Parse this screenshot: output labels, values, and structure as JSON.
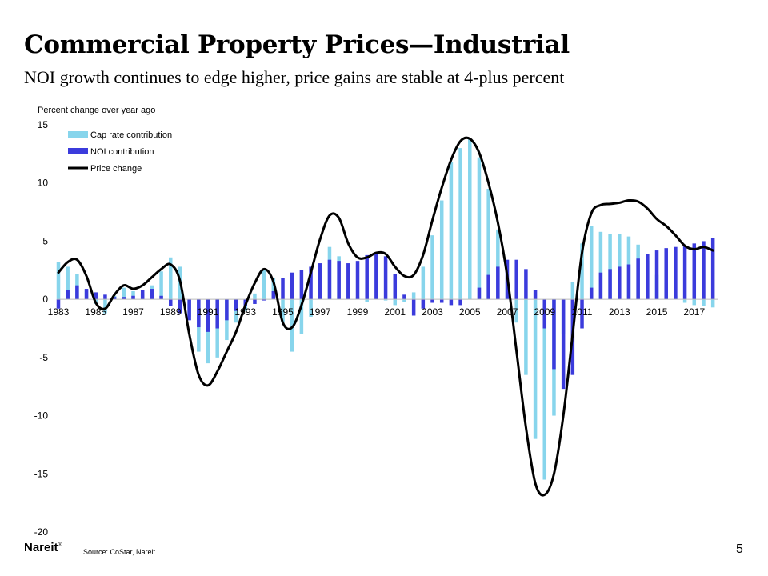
{
  "slide": {
    "title": "Commercial Property Prices—Industrial",
    "subtitle": "NOI growth continues to edge higher, price gains are stable at 4-plus percent",
    "source": "Source:  CoStar, Nareit",
    "logo": "Nareit",
    "logo_mark": "®",
    "page_number": "5"
  },
  "chart_data": {
    "type": "bar",
    "stacked": true,
    "ylabel": "Percent change over year ago",
    "ylim": [
      -20,
      15
    ],
    "yticks": [
      15,
      10,
      5,
      0,
      -5,
      -10,
      -15,
      -20
    ],
    "xlim": [
      1983,
      2018.25
    ],
    "xticks": [
      1983,
      1985,
      1987,
      1989,
      1991,
      1993,
      1995,
      1997,
      1999,
      2001,
      2003,
      2005,
      2007,
      2009,
      2011,
      2013,
      2015,
      2017
    ],
    "legend_position": "top-left",
    "colors": {
      "cap_rate": "#87d5ec",
      "noi": "#3b3bdc",
      "price": "#000000"
    },
    "series": [
      {
        "name": "Cap rate contribution",
        "kind": "bar",
        "points": [
          [
            1983,
            3.2
          ],
          [
            1983.5,
            2.8
          ],
          [
            1984,
            2.2
          ],
          [
            1984.5,
            0.8
          ],
          [
            1985,
            -0.4
          ],
          [
            1985.5,
            -1.2
          ],
          [
            1986,
            0.3
          ],
          [
            1986.5,
            1.0
          ],
          [
            1987,
            0.7
          ],
          [
            1987.5,
            0.5
          ],
          [
            1988,
            1.2
          ],
          [
            1988.5,
            2.4
          ],
          [
            1989,
            3.6
          ],
          [
            1989.5,
            2.8
          ],
          [
            1990,
            -1.5
          ],
          [
            1990.5,
            -4.5
          ],
          [
            1991,
            -5.5
          ],
          [
            1991.5,
            -5.0
          ],
          [
            1992,
            -3.5
          ],
          [
            1992.5,
            -2.0
          ],
          [
            1993,
            -1.0
          ],
          [
            1993.5,
            0.5
          ],
          [
            1994,
            2.6
          ],
          [
            1994.5,
            1.8
          ],
          [
            1995,
            -2.0
          ],
          [
            1995.5,
            -4.5
          ],
          [
            1996,
            -3.0
          ],
          [
            1996.5,
            -1.5
          ],
          [
            1997,
            2.5
          ],
          [
            1997.5,
            4.5
          ],
          [
            1998,
            3.7
          ],
          [
            1998.5,
            0.8
          ],
          [
            1999,
            0.2
          ],
          [
            1999.5,
            -0.2
          ],
          [
            2000,
            0.0
          ],
          [
            2000.5,
            -0.1
          ],
          [
            2001,
            -0.5
          ],
          [
            2001.5,
            -0.2
          ],
          [
            2002,
            0.6
          ],
          [
            2002.5,
            2.8
          ],
          [
            2003,
            5.5
          ],
          [
            2003.5,
            8.5
          ],
          [
            2004,
            11.8
          ],
          [
            2004.5,
            13.0
          ],
          [
            2005,
            13.8
          ],
          [
            2005.5,
            12.2
          ],
          [
            2006,
            9.5
          ],
          [
            2006.5,
            6.0
          ],
          [
            2007,
            1.5
          ],
          [
            2007.5,
            -2.0
          ],
          [
            2008,
            -6.5
          ],
          [
            2008.5,
            -12.0
          ],
          [
            2009,
            -15.5
          ],
          [
            2009.5,
            -10.0
          ],
          [
            2010,
            -3.0
          ],
          [
            2010.5,
            1.5
          ],
          [
            2011,
            4.8
          ],
          [
            2011.5,
            6.3
          ],
          [
            2012,
            5.8
          ],
          [
            2012.5,
            5.6
          ],
          [
            2013,
            5.6
          ],
          [
            2013.5,
            5.4
          ],
          [
            2014,
            4.7
          ],
          [
            2014.5,
            3.3
          ],
          [
            2015,
            2.1
          ],
          [
            2015.5,
            1.4
          ],
          [
            2016,
            0.3
          ],
          [
            2016.5,
            -0.3
          ],
          [
            2017,
            -0.5
          ],
          [
            2017.5,
            -0.6
          ],
          [
            2018,
            -0.7
          ]
        ]
      },
      {
        "name": "NOI contribution",
        "kind": "bar",
        "points": [
          [
            1983,
            -0.8
          ],
          [
            1983.5,
            0.8
          ],
          [
            1984,
            1.2
          ],
          [
            1984.5,
            0.9
          ],
          [
            1985,
            0.6
          ],
          [
            1985.5,
            0.4
          ],
          [
            1986,
            0.2
          ],
          [
            1986.5,
            0.2
          ],
          [
            1987,
            0.3
          ],
          [
            1987.5,
            0.8
          ],
          [
            1988,
            0.9
          ],
          [
            1988.5,
            0.3
          ],
          [
            1989,
            -0.6
          ],
          [
            1989.5,
            -1.2
          ],
          [
            1990,
            -1.8
          ],
          [
            1990.5,
            -2.4
          ],
          [
            1991,
            -2.8
          ],
          [
            1991.5,
            -2.5
          ],
          [
            1992,
            -1.8
          ],
          [
            1992.5,
            -1.0
          ],
          [
            1993,
            -0.6
          ],
          [
            1993.5,
            -0.4
          ],
          [
            1994,
            -0.1
          ],
          [
            1994.5,
            0.7
          ],
          [
            1995,
            1.8
          ],
          [
            1995.5,
            2.3
          ],
          [
            1996,
            2.5
          ],
          [
            1996.5,
            2.8
          ],
          [
            1997,
            3.1
          ],
          [
            1997.5,
            3.4
          ],
          [
            1998,
            3.3
          ],
          [
            1998.5,
            3.1
          ],
          [
            1999,
            3.3
          ],
          [
            1999.5,
            3.8
          ],
          [
            2000,
            4.0
          ],
          [
            2000.5,
            3.7
          ],
          [
            2001,
            2.2
          ],
          [
            2001.5,
            0.4
          ],
          [
            2002,
            -1.4
          ],
          [
            2002.5,
            -0.8
          ],
          [
            2003,
            -0.3
          ],
          [
            2003.5,
            -0.3
          ],
          [
            2004,
            -0.5
          ],
          [
            2004.5,
            -0.5
          ],
          [
            2005,
            0.0
          ],
          [
            2005.5,
            1.0
          ],
          [
            2006,
            2.1
          ],
          [
            2006.5,
            2.8
          ],
          [
            2007,
            3.4
          ],
          [
            2007.5,
            3.4
          ],
          [
            2008,
            2.6
          ],
          [
            2008.5,
            0.8
          ],
          [
            2009,
            -2.5
          ],
          [
            2009.5,
            -6.0
          ],
          [
            2010,
            -7.7
          ],
          [
            2010.5,
            -6.5
          ],
          [
            2011,
            -2.5
          ],
          [
            2011.5,
            1.0
          ],
          [
            2012,
            2.3
          ],
          [
            2012.5,
            2.6
          ],
          [
            2013,
            2.8
          ],
          [
            2013.5,
            3.0
          ],
          [
            2014,
            3.5
          ],
          [
            2014.5,
            3.9
          ],
          [
            2015,
            4.2
          ],
          [
            2015.5,
            4.4
          ],
          [
            2016,
            4.5
          ],
          [
            2016.5,
            4.6
          ],
          [
            2017,
            4.8
          ],
          [
            2017.5,
            5.0
          ],
          [
            2018,
            5.3
          ]
        ]
      },
      {
        "name": "Price change",
        "kind": "line",
        "points": [
          [
            1983,
            2.3
          ],
          [
            1983.5,
            3.2
          ],
          [
            1984,
            3.4
          ],
          [
            1984.5,
            2.0
          ],
          [
            1985,
            -0.3
          ],
          [
            1985.5,
            -0.8
          ],
          [
            1986,
            0.4
          ],
          [
            1986.5,
            1.2
          ],
          [
            1987,
            0.9
          ],
          [
            1987.5,
            1.2
          ],
          [
            1988,
            1.9
          ],
          [
            1988.5,
            2.6
          ],
          [
            1989,
            3.0
          ],
          [
            1989.5,
            1.6
          ],
          [
            1990,
            -3.0
          ],
          [
            1990.5,
            -6.5
          ],
          [
            1991,
            -7.4
          ],
          [
            1991.5,
            -6.2
          ],
          [
            1992,
            -4.5
          ],
          [
            1992.5,
            -2.8
          ],
          [
            1993,
            -0.5
          ],
          [
            1993.5,
            1.4
          ],
          [
            1994,
            2.6
          ],
          [
            1994.5,
            1.5
          ],
          [
            1995,
            -2.0
          ],
          [
            1995.5,
            -2.4
          ],
          [
            1996,
            -0.5
          ],
          [
            1996.5,
            2.3
          ],
          [
            1997,
            5.2
          ],
          [
            1997.5,
            7.2
          ],
          [
            1998,
            7.0
          ],
          [
            1998.5,
            4.8
          ],
          [
            1999,
            3.6
          ],
          [
            1999.5,
            3.6
          ],
          [
            2000,
            4.0
          ],
          [
            2000.5,
            3.9
          ],
          [
            2001,
            2.8
          ],
          [
            2001.5,
            2.0
          ],
          [
            2002,
            2.1
          ],
          [
            2002.5,
            3.8
          ],
          [
            2003,
            6.8
          ],
          [
            2003.5,
            9.6
          ],
          [
            2004,
            12.0
          ],
          [
            2004.5,
            13.6
          ],
          [
            2005,
            13.8
          ],
          [
            2005.5,
            12.6
          ],
          [
            2006,
            10.0
          ],
          [
            2006.5,
            6.6
          ],
          [
            2007,
            2.0
          ],
          [
            2007.5,
            -4.5
          ],
          [
            2008,
            -11.0
          ],
          [
            2008.5,
            -15.8
          ],
          [
            2009,
            -16.8
          ],
          [
            2009.5,
            -15.0
          ],
          [
            2010,
            -10.0
          ],
          [
            2010.5,
            -3.0
          ],
          [
            2011,
            4.0
          ],
          [
            2011.5,
            7.4
          ],
          [
            2012,
            8.1
          ],
          [
            2012.5,
            8.2
          ],
          [
            2013,
            8.3
          ],
          [
            2013.5,
            8.5
          ],
          [
            2014,
            8.4
          ],
          [
            2014.5,
            7.8
          ],
          [
            2015,
            6.9
          ],
          [
            2015.5,
            6.3
          ],
          [
            2016,
            5.5
          ],
          [
            2016.5,
            4.6
          ],
          [
            2017,
            4.3
          ],
          [
            2017.5,
            4.5
          ],
          [
            2018,
            4.2
          ]
        ]
      }
    ]
  }
}
